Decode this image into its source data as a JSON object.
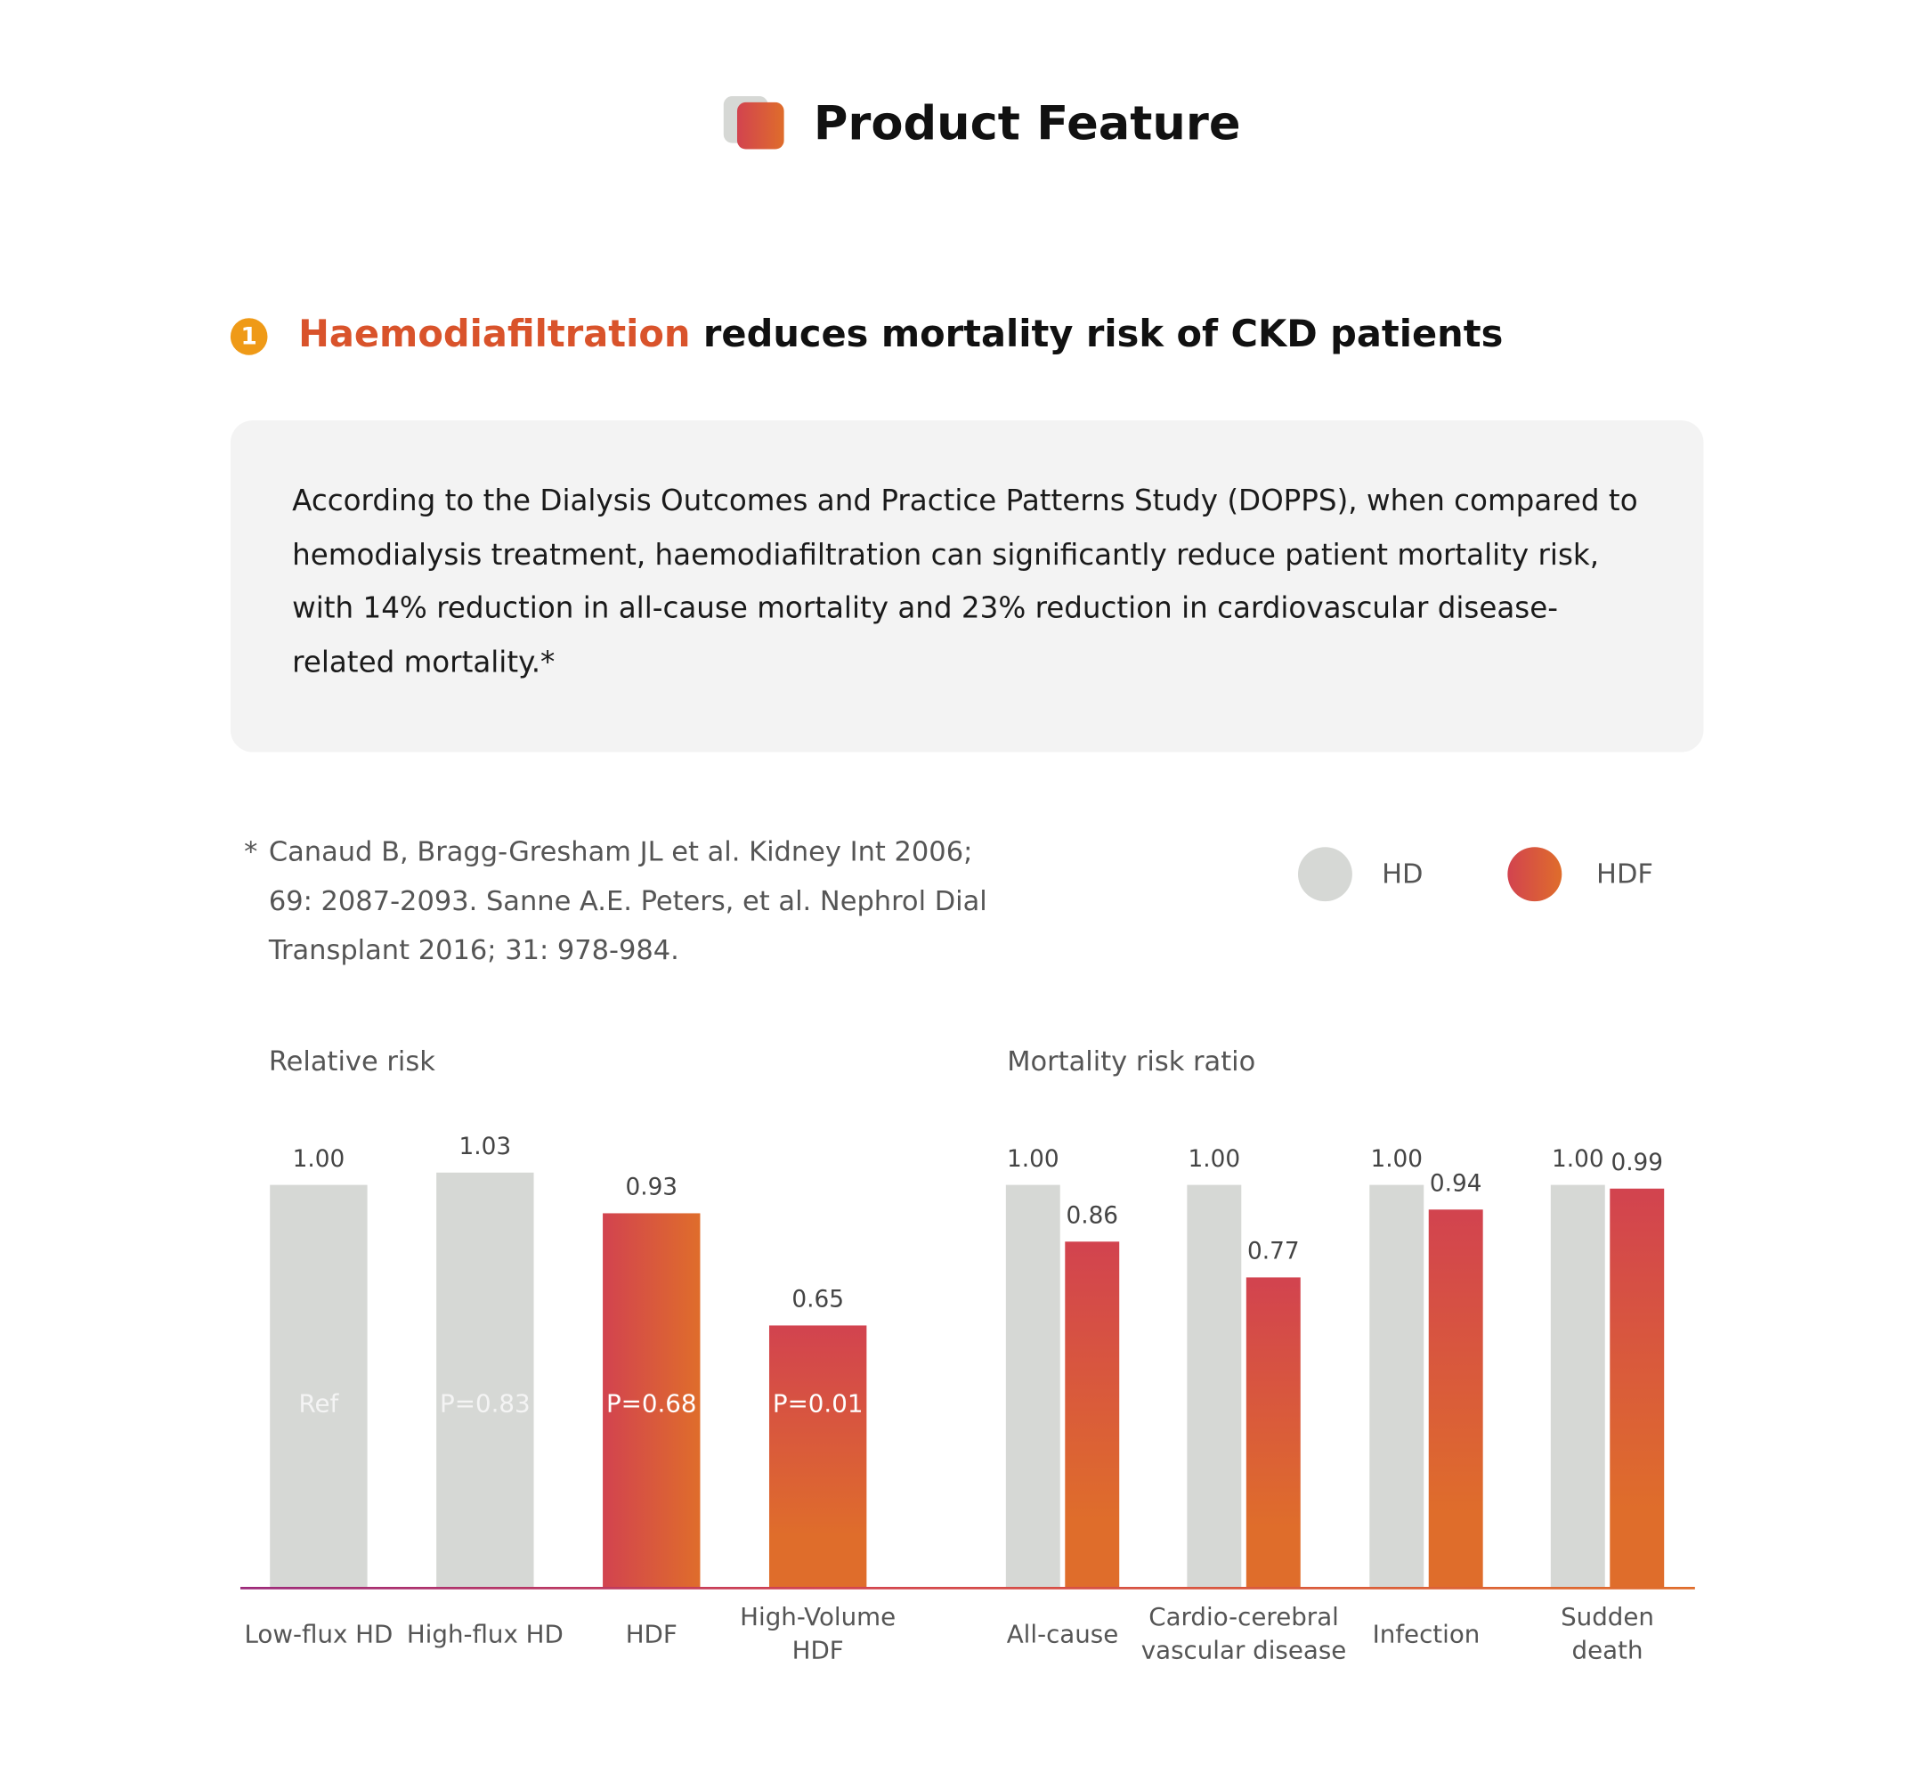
{
  "header": {
    "title": "Product Feature"
  },
  "section": {
    "number": "1",
    "highlight": "Haemodiafiltration",
    "heading_rest": " reduces mortality risk of CKD patients"
  },
  "summary": "According to the Dialysis Outcomes and Practice Patterns Study (DOPPS), when compared to hemodialysis treatment, haemodiafiltration can significantly reduce patient mortality risk, with 14% reduction in all-cause mortality and 23% reduction in cardiovascular disease-related mortality.*",
  "reference": {
    "star": "*",
    "text": "Canaud B, Bragg-Gresham JL et al. Kidney Int 2006; 69: 2087-2093. Sanne A.E. Peters, et al. Nephrol Dial Transplant 2016; 31: 978-984."
  },
  "colors": {
    "hd": "#d6d8d5",
    "hdf_start": "#d2434f",
    "hdf_end": "#df6d2b",
    "accent": "#d9532b",
    "badge": "#ef9a17"
  },
  "chart_data": [
    {
      "type": "bar",
      "title": "Relative risk",
      "legend": [],
      "categories": [
        "Low-flux HD",
        "High-flux HD",
        "HDF",
        "High-Volume HDF"
      ],
      "values": [
        1.0,
        1.03,
        0.93,
        0.65
      ],
      "value_labels": [
        "1.00",
        "1.03",
        "0.93",
        "0.65"
      ],
      "series_type": [
        "HD",
        "HD",
        "HDF",
        "HDF"
      ],
      "p_labels": [
        "Ref",
        "P=0.83",
        "P=0.68",
        "P=0.01"
      ],
      "ylim": [
        0,
        1.1
      ]
    },
    {
      "type": "bar",
      "title": "Mortality risk ratio",
      "legend": [
        "HD",
        "HDF"
      ],
      "legend_placement": "top-right",
      "categories": [
        "All-cause",
        "Cardio-cerebral vascular disease",
        "Infection",
        "Sudden death"
      ],
      "series": [
        {
          "name": "HD",
          "values": [
            1.0,
            1.0,
            1.0,
            1.0
          ],
          "labels": [
            "1.00",
            "1.00",
            "1.00",
            "1.00"
          ]
        },
        {
          "name": "HDF",
          "values": [
            0.86,
            0.77,
            0.94,
            0.99
          ],
          "labels": [
            "0.86",
            "0.77",
            "0.94",
            "0.99"
          ]
        }
      ],
      "ylim": [
        0,
        1.1
      ]
    }
  ]
}
